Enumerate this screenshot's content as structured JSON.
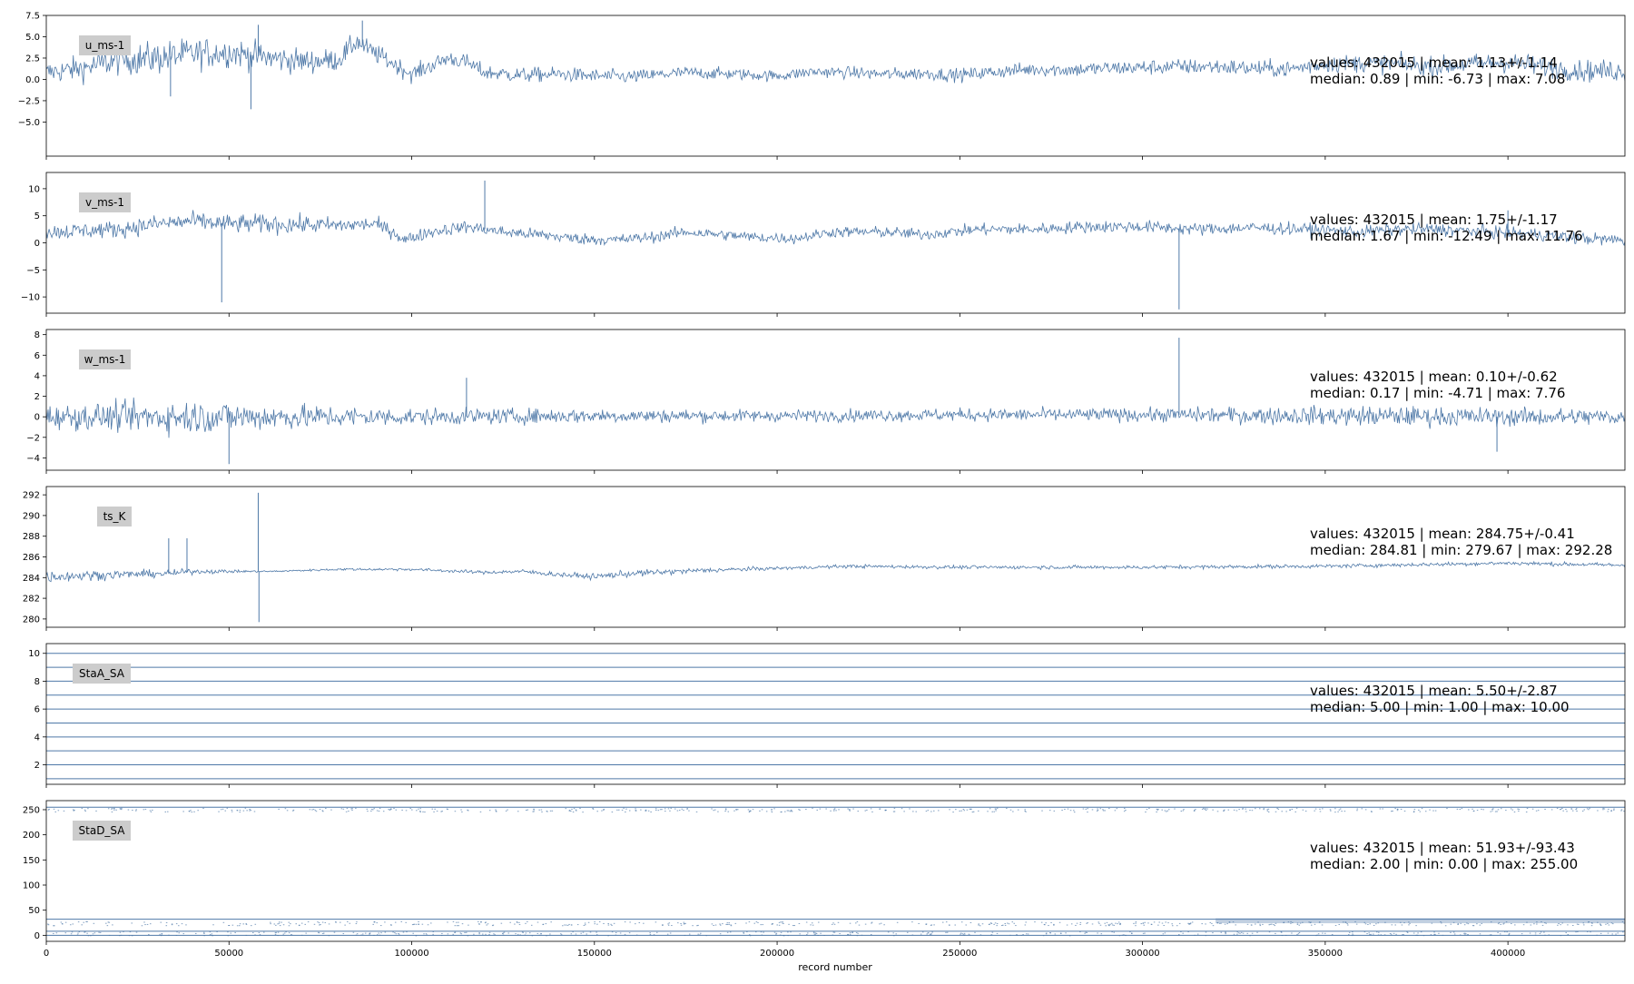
{
  "chart_data": {
    "type": "line",
    "xlabel": "record number",
    "xlim": [
      0,
      432015
    ],
    "x_ticks": [
      0,
      50000,
      100000,
      150000,
      200000,
      250000,
      300000,
      350000,
      400000
    ],
    "x_tick_labels": [
      "0",
      "50000",
      "100000",
      "150000",
      "200000",
      "250000",
      "300000",
      "350000",
      "400000"
    ],
    "line_color": "#4f79a8",
    "grid": false,
    "shared_x": true,
    "panels": [
      {
        "series_name": "u_ms-1",
        "ylim": [
          -9.0,
          7.5
        ],
        "y_ticks": [
          -5.0,
          -2.5,
          0.0,
          2.5,
          5.0,
          7.5
        ],
        "y_tick_labels": [
          "−5.0",
          "−2.5",
          "0.0",
          "2.5",
          "5.0",
          "7.5"
        ],
        "stats_line1": "values: 432015 | mean: 1.13+/-1.14",
        "stats_line2": "median: 0.89 | min: -6.73 | max: 7.08",
        "profile": [
          [
            0,
            0.8
          ],
          [
            10000,
            1.3
          ],
          [
            20000,
            2.3
          ],
          [
            30000,
            2.5
          ],
          [
            40000,
            3.0
          ],
          [
            50000,
            3.2
          ],
          [
            60000,
            2.6
          ],
          [
            70000,
            2.1
          ],
          [
            80000,
            2.3
          ],
          [
            85000,
            4.5
          ],
          [
            88000,
            3.5
          ],
          [
            92000,
            2.6
          ],
          [
            100000,
            0.6
          ],
          [
            110000,
            2.5
          ],
          [
            115000,
            2.0
          ],
          [
            120000,
            0.8
          ],
          [
            130000,
            0.5
          ],
          [
            140000,
            0.6
          ],
          [
            150000,
            0.4
          ],
          [
            160000,
            0.3
          ],
          [
            175000,
            0.8
          ],
          [
            190000,
            0.6
          ],
          [
            200000,
            0.4
          ],
          [
            210000,
            0.9
          ],
          [
            220000,
            0.8
          ],
          [
            230000,
            0.6
          ],
          [
            240000,
            0.7
          ],
          [
            250000,
            0.5
          ],
          [
            260000,
            0.9
          ],
          [
            270000,
            1.2
          ],
          [
            280000,
            1.1
          ],
          [
            290000,
            1.3
          ],
          [
            300000,
            1.4
          ],
          [
            310000,
            1.5
          ],
          [
            320000,
            1.5
          ],
          [
            330000,
            1.3
          ],
          [
            340000,
            1.2
          ],
          [
            350000,
            1.8
          ],
          [
            360000,
            1.9
          ],
          [
            370000,
            1.8
          ],
          [
            380000,
            1.5
          ],
          [
            390000,
            1.8
          ],
          [
            400000,
            2.0
          ],
          [
            410000,
            1.5
          ],
          [
            420000,
            1.0
          ],
          [
            432015,
            1.0
          ]
        ],
        "noise_profile": [
          [
            0,
            0.8
          ],
          [
            30000,
            1.2
          ],
          [
            60000,
            1.0
          ],
          [
            100000,
            0.6
          ],
          [
            200000,
            0.4
          ],
          [
            340000,
            0.6
          ],
          [
            432015,
            0.8
          ]
        ],
        "spikes": [
          [
            86500,
            6.9
          ],
          [
            34000,
            -2.0
          ],
          [
            56000,
            -3.5
          ],
          [
            58000,
            6.4
          ]
        ]
      },
      {
        "series_name": "v_ms-1",
        "ylim": [
          -13.0,
          13.0
        ],
        "y_ticks": [
          -10,
          -5,
          0,
          5,
          10
        ],
        "y_tick_labels": [
          "−10",
          "−5",
          "0",
          "5",
          "10"
        ],
        "stats_line1": "values: 432015 | mean: 1.75+/-1.17",
        "stats_line2": "median: 1.67 | min: -12.49 | max: 11.76",
        "profile": [
          [
            0,
            2.0
          ],
          [
            20000,
            2.5
          ],
          [
            30000,
            3.5
          ],
          [
            40000,
            4.0
          ],
          [
            50000,
            3.5
          ],
          [
            60000,
            3.5
          ],
          [
            80000,
            3.2
          ],
          [
            90000,
            3.5
          ],
          [
            95000,
            2.0
          ],
          [
            98000,
            0.5
          ],
          [
            105000,
            2.0
          ],
          [
            115000,
            3.0
          ],
          [
            125000,
            2.0
          ],
          [
            135000,
            1.5
          ],
          [
            145000,
            0.8
          ],
          [
            155000,
            0.5
          ],
          [
            165000,
            1.0
          ],
          [
            175000,
            2.0
          ],
          [
            185000,
            1.5
          ],
          [
            195000,
            1.0
          ],
          [
            205000,
            0.8
          ],
          [
            215000,
            2.0
          ],
          [
            230000,
            2.0
          ],
          [
            240000,
            1.5
          ],
          [
            255000,
            2.5
          ],
          [
            270000,
            2.5
          ],
          [
            285000,
            3.0
          ],
          [
            300000,
            3.0
          ],
          [
            315000,
            2.5
          ],
          [
            330000,
            2.8
          ],
          [
            345000,
            2.5
          ],
          [
            360000,
            2.0
          ],
          [
            370000,
            2.5
          ],
          [
            380000,
            2.5
          ],
          [
            395000,
            2.0
          ],
          [
            410000,
            1.5
          ],
          [
            420000,
            0.8
          ],
          [
            432015,
            0.5
          ]
        ],
        "noise_profile": [
          [
            0,
            0.9
          ],
          [
            60000,
            1.1
          ],
          [
            100000,
            0.7
          ],
          [
            200000,
            0.6
          ],
          [
            300000,
            0.7
          ],
          [
            432015,
            0.7
          ]
        ],
        "spikes": [
          [
            120000,
            11.5
          ],
          [
            48000,
            -11.0
          ],
          [
            310000,
            -12.3
          ],
          [
            400000,
            6.0
          ]
        ]
      },
      {
        "series_name": "w_ms-1",
        "ylim": [
          -5.2,
          8.5
        ],
        "y_ticks": [
          -4,
          -2,
          0,
          2,
          4,
          6,
          8
        ],
        "y_tick_labels": [
          "−4",
          "−2",
          "0",
          "2",
          "4",
          "6",
          "8"
        ],
        "stats_line1": "values: 432015 | mean: 0.10+/-0.62",
        "stats_line2": "median: 0.17 | min: -4.71 | max: 7.76",
        "profile": [
          [
            0,
            0.0
          ],
          [
            50000,
            0.0
          ],
          [
            100000,
            0.0
          ],
          [
            150000,
            0.1
          ],
          [
            200000,
            0.1
          ],
          [
            250000,
            0.2
          ],
          [
            300000,
            0.2
          ],
          [
            350000,
            0.1
          ],
          [
            400000,
            0.0
          ],
          [
            432015,
            0.0
          ]
        ],
        "noise_profile": [
          [
            0,
            0.7
          ],
          [
            40000,
            1.0
          ],
          [
            60000,
            0.8
          ],
          [
            100000,
            0.5
          ],
          [
            200000,
            0.35
          ],
          [
            300000,
            0.4
          ],
          [
            360000,
            0.6
          ],
          [
            432015,
            0.5
          ]
        ],
        "spikes": [
          [
            115000,
            3.8
          ],
          [
            50000,
            -4.6
          ],
          [
            310000,
            7.7
          ],
          [
            397000,
            -3.4
          ]
        ]
      },
      {
        "series_name": "ts_K",
        "ylim": [
          279.2,
          292.8
        ],
        "y_ticks": [
          280,
          282,
          284,
          286,
          288,
          290,
          292
        ],
        "y_tick_labels": [
          "280",
          "282",
          "284",
          "286",
          "288",
          "290",
          "292"
        ],
        "stats_line1": "values: 432015 | mean: 284.75+/-0.41",
        "stats_line2": "median: 284.81 | min: 279.67 | max: 292.28",
        "profile": [
          [
            0,
            284.1
          ],
          [
            20000,
            284.3
          ],
          [
            34000,
            284.4
          ],
          [
            40000,
            284.6
          ],
          [
            58000,
            284.6
          ],
          [
            62000,
            284.6
          ],
          [
            80000,
            284.8
          ],
          [
            100000,
            284.8
          ],
          [
            120000,
            284.5
          ],
          [
            130000,
            284.6
          ],
          [
            140000,
            284.3
          ],
          [
            150000,
            284.1
          ],
          [
            160000,
            284.4
          ],
          [
            180000,
            284.7
          ],
          [
            200000,
            284.9
          ],
          [
            220000,
            285.1
          ],
          [
            250000,
            285.0
          ],
          [
            300000,
            285.0
          ],
          [
            350000,
            285.1
          ],
          [
            400000,
            285.4
          ],
          [
            432015,
            285.2
          ]
        ],
        "noise_profile": [
          [
            0,
            0.35
          ],
          [
            34000,
            0.2
          ],
          [
            58000,
            0.05
          ],
          [
            120000,
            0.1
          ],
          [
            160000,
            0.2
          ],
          [
            200000,
            0.1
          ],
          [
            432015,
            0.12
          ]
        ],
        "spikes": [
          [
            33500,
            287.8
          ],
          [
            38500,
            287.8
          ],
          [
            58000,
            292.2
          ],
          [
            58200,
            279.7
          ]
        ]
      },
      {
        "series_name": "StaA_SA",
        "ylim": [
          0.6,
          10.7
        ],
        "y_ticks": [
          2,
          4,
          6,
          8,
          10
        ],
        "y_tick_labels": [
          "2",
          "4",
          "6",
          "8",
          "10"
        ],
        "stats_line1": "values: 432015 | mean: 5.50+/-2.87",
        "stats_line2": "median: 5.00 | min: 1.00 | max: 10.00",
        "levels": [
          1,
          2,
          3,
          4,
          5,
          6,
          7,
          8,
          9,
          10
        ]
      },
      {
        "series_name": "StaD_SA",
        "ylim": [
          -12,
          268
        ],
        "y_ticks": [
          0,
          50,
          100,
          150,
          200,
          250
        ],
        "y_tick_labels": [
          "0",
          "50",
          "100",
          "150",
          "200",
          "250"
        ],
        "stats_line1": "values: 432015 | mean: 51.93+/-93.43",
        "stats_line2": "median: 2.00 | min: 0.00 | max: 255.00",
        "levels": [
          0,
          8,
          32,
          255
        ]
      }
    ]
  }
}
